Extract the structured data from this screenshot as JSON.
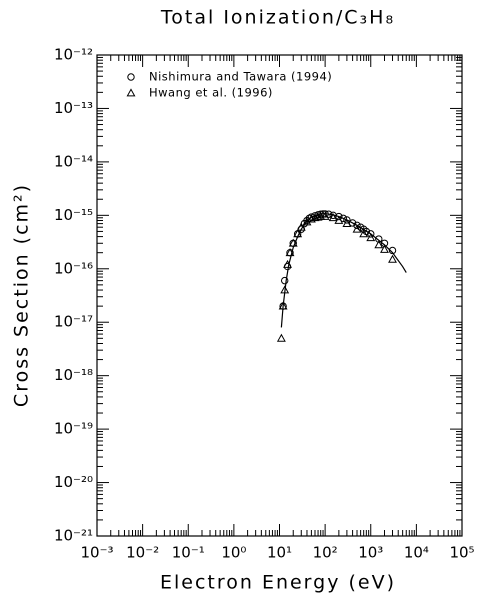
{
  "chart_data": {
    "type": "scatter",
    "title": "Total Ionization/C₃H₈",
    "x_label": "Electron Energy (eV)",
    "y_label": "Cross Section (cm²)",
    "log_x": true,
    "log_y": true,
    "xlim": [
      0.001,
      100000
    ],
    "ylim": [
      1e-21,
      1e-12
    ],
    "xticks": [
      {
        "value": 0.001,
        "label": "10⁻³"
      },
      {
        "value": 0.01,
        "label": "10⁻²"
      },
      {
        "value": 0.1,
        "label": "10⁻¹"
      },
      {
        "value": 1,
        "label": "10⁰"
      },
      {
        "value": 10,
        "label": "10¹"
      },
      {
        "value": 100,
        "label": "10²"
      },
      {
        "value": 1000,
        "label": "10³"
      },
      {
        "value": 10000,
        "label": "10⁴"
      },
      {
        "value": 100000,
        "label": "10⁵"
      }
    ],
    "yticks": [
      {
        "value": 1e-21,
        "label": "10⁻²¹"
      },
      {
        "value": 1e-20,
        "label": "10⁻²⁰"
      },
      {
        "value": 1e-19,
        "label": "10⁻¹⁹"
      },
      {
        "value": 1e-18,
        "label": "10⁻¹⁸"
      },
      {
        "value": 1e-17,
        "label": "10⁻¹⁷"
      },
      {
        "value": 1e-16,
        "label": "10⁻¹⁶"
      },
      {
        "value": 1e-15,
        "label": "10⁻¹⁵"
      },
      {
        "value": 1e-14,
        "label": "10⁻¹⁴"
      },
      {
        "value": 1e-13,
        "label": "10⁻¹³"
      },
      {
        "value": 1e-12,
        "label": "10⁻¹²"
      }
    ],
    "legend_position": "upper left",
    "series": [
      {
        "name": "Nishimura and Tawara (1994)",
        "marker": "circle",
        "color": "#000000",
        "x": [
          12,
          13,
          15,
          17,
          20,
          25,
          30,
          35,
          40,
          45,
          50,
          60,
          70,
          80,
          90,
          100,
          120,
          150,
          200,
          250,
          300,
          400,
          500,
          600,
          700,
          800,
          1000,
          1500,
          2000,
          3000
        ],
        "values": [
          2e-17,
          6e-17,
          1.1e-16,
          2e-16,
          3e-16,
          4.5e-16,
          5.5e-16,
          7e-16,
          8e-16,
          8.8e-16,
          9.3e-16,
          9.8e-16,
          1.02e-15,
          1.05e-15,
          1.06e-15,
          1.06e-15,
          1.05e-15,
          1e-15,
          9.5e-16,
          8.8e-16,
          8.2e-16,
          7.2e-16,
          6.5e-16,
          6e-16,
          5.5e-16,
          5e-16,
          4.5e-16,
          3.6e-16,
          3e-16,
          2.2e-16
        ]
      },
      {
        "name": "Hwang et al. (1996)",
        "marker": "triangle",
        "color": "#000000",
        "x": [
          11,
          12,
          13,
          15,
          17,
          20,
          25,
          30,
          40,
          50,
          60,
          70,
          80,
          100,
          150,
          200,
          300,
          500,
          700,
          1000,
          1500,
          2000,
          3000
        ],
        "values": [
          5e-18,
          2e-17,
          4e-17,
          1.2e-16,
          2e-16,
          3e-16,
          4.5e-16,
          6e-16,
          7.5e-16,
          8.5e-16,
          9e-16,
          9.2e-16,
          9.5e-16,
          9.5e-16,
          9e-16,
          8e-16,
          7e-16,
          5.5e-16,
          4.5e-16,
          3.8e-16,
          2.8e-16,
          2.3e-16,
          1.5e-16
        ]
      }
    ],
    "curve": {
      "color": "#000000",
      "x": [
        11,
        12,
        14,
        16,
        20,
        25,
        30,
        40,
        50,
        70,
        100,
        150,
        200,
        300,
        500,
        1000,
        2000,
        3000,
        5000,
        6000
      ],
      "values": [
        8e-18,
        2e-17,
        6e-17,
        1.2e-16,
        2.5e-16,
        4e-16,
        5.5e-16,
        7.8e-16,
        9.2e-16,
        1.05e-15,
        1.08e-15,
        1.02e-15,
        9.5e-16,
        8.2e-16,
        6.5e-16,
        4.5e-16,
        2.8e-16,
        2e-16,
        1.1e-16,
        8.5e-17
      ]
    }
  }
}
